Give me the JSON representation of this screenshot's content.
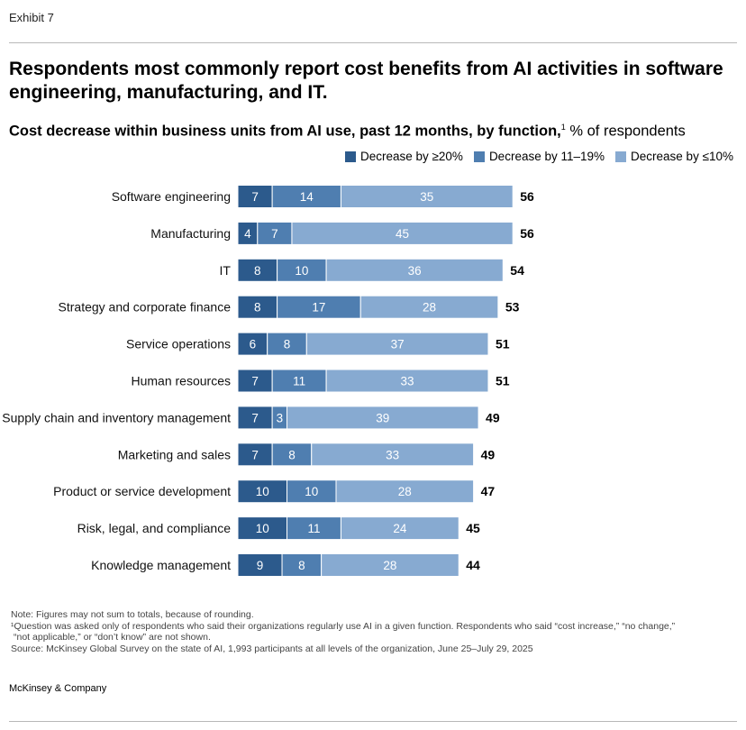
{
  "exhibit_label": "Exhibit 7",
  "title": "Respondents most commonly report cost benefits from AI activities in software engineering, manufacturing, and IT.",
  "subtitle": {
    "bold": "Cost decrease within business units from AI use, past 12 months, by function,",
    "footnote_marker": "1",
    "unit": " % of respondents"
  },
  "colors": {
    "decrease_20_plus": "#2c5a8c",
    "decrease_11_19": "#4f7eb0",
    "decrease_10_or_less": "#87aad1"
  },
  "chart_data": {
    "type": "bar",
    "orientation": "horizontal",
    "stacked": true,
    "categories": [
      "Software engineering",
      "Manufacturing",
      "IT",
      "Strategy and corporate finance",
      "Service operations",
      "Human resources",
      "Supply chain and inventory management",
      "Marketing and sales",
      "Product or service development",
      "Risk, legal, and compliance",
      "Knowledge management"
    ],
    "series": [
      {
        "name": "Decrease by ≥20%",
        "values": [
          7,
          4,
          8,
          8,
          6,
          7,
          7,
          7,
          10,
          10,
          9
        ]
      },
      {
        "name": "Decrease by 11–19%",
        "values": [
          14,
          7,
          10,
          17,
          8,
          11,
          3,
          8,
          10,
          11,
          8
        ]
      },
      {
        "name": "Decrease by ≤10%",
        "values": [
          35,
          45,
          36,
          28,
          37,
          33,
          39,
          33,
          28,
          24,
          28
        ]
      }
    ],
    "totals": [
      56,
      56,
      54,
      53,
      51,
      51,
      49,
      49,
      47,
      45,
      44
    ],
    "legend_position": "top-right",
    "xlabel": "",
    "ylabel": ""
  },
  "notes": {
    "note": "Note: Figures may not sum to totals, because of rounding.",
    "footnote_line1": "¹Question was asked only of respondents who said their organizations regularly use AI in a given function. Respondents who said “cost increase,” “no change,”",
    "footnote_line2": "“not applicable,” or “don’t know” are not shown.",
    "source": "Source: McKinsey Global Survey on the state of AI, 1,993 participants at all levels of the organization, June 25–July 29, 2025"
  },
  "brand": "McKinsey & Company"
}
